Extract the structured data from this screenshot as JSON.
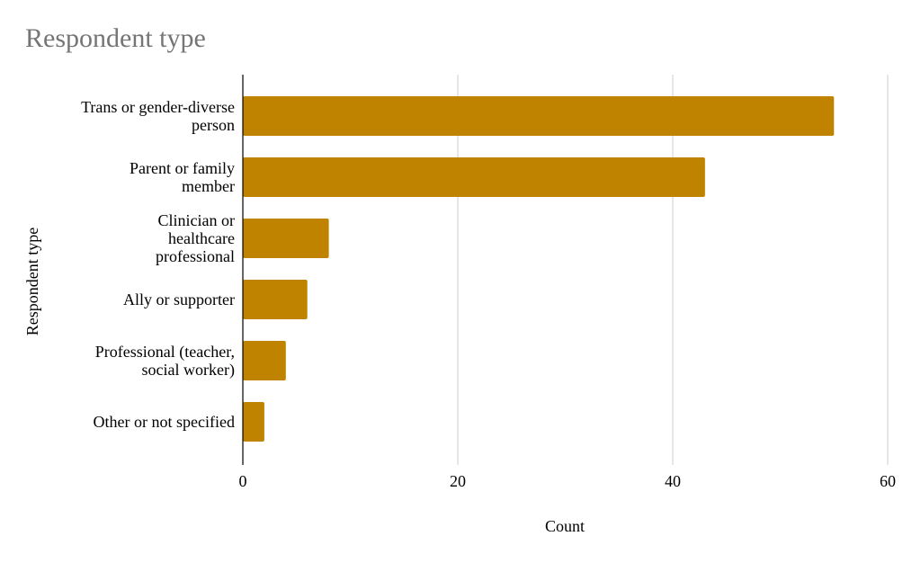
{
  "chart_data": {
    "type": "bar",
    "orientation": "horizontal",
    "title": "Respondent type",
    "x_label": "Count",
    "y_label": "Respondent type",
    "categories": [
      "Trans or gender-diverse person",
      "Parent or family member",
      "Clinician or healthcare professional",
      "Ally or supporter",
      "Professional (teacher, social worker)",
      "Other or not specified"
    ],
    "values": [
      55,
      43,
      8,
      6,
      4,
      2
    ],
    "color": "#bf8300",
    "xlim": [
      0,
      60
    ],
    "xticks": [
      0,
      20,
      40,
      60
    ],
    "grid": true
  }
}
